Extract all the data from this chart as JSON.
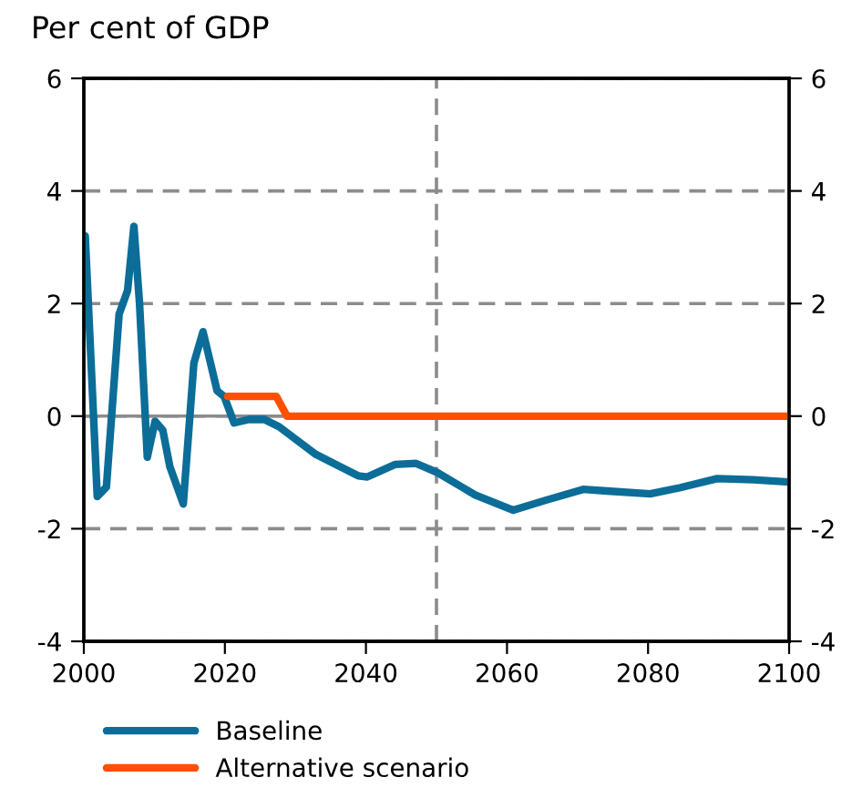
{
  "chart_data": {
    "type": "line",
    "ylabel": "Per cent of GDP",
    "series": [
      {
        "name": "Baseline",
        "color": "#0b6d98",
        "x": [
          2000.2,
          2001.9,
          2003.2,
          2005.0,
          2006.2,
          2007.1,
          2007.9,
          2009.0,
          2010.1,
          2011.2,
          2012.2,
          2014.1,
          2015.6,
          2016.9,
          2018.9,
          2019.9,
          2021.3,
          2023.4,
          2025.6,
          2027.7,
          2032.9,
          2038.9,
          2040.2,
          2044.1,
          2047.1,
          2050.1,
          2055.5,
          2060.9,
          2065.6,
          2070.8,
          2074.2,
          2080.3,
          2084.6,
          2089.8,
          2094.9,
          2100
        ],
        "values": [
          3.2,
          -1.43,
          -1.26,
          1.81,
          2.23,
          3.37,
          2.0,
          -0.73,
          -0.09,
          -0.25,
          -0.9,
          -1.56,
          0.94,
          1.5,
          0.45,
          0.35,
          -0.12,
          -0.06,
          -0.06,
          -0.19,
          -0.68,
          -1.06,
          -1.08,
          -0.86,
          -0.84,
          -1.0,
          -1.4,
          -1.67,
          -1.49,
          -1.3,
          -1.33,
          -1.38,
          -1.27,
          -1.11,
          -1.13,
          -1.17
        ]
      },
      {
        "name": "Alternative scenario",
        "color": "#ff4f00",
        "x": [
          2020.4,
          2027.3,
          2028.8,
          2100
        ],
        "values": [
          0.35,
          0.35,
          0,
          0
        ]
      }
    ],
    "xlim": [
      2000,
      2100
    ],
    "xticks": [
      2000,
      2020,
      2040,
      2060,
      2080,
      2100
    ],
    "ylim": [
      -4,
      6
    ],
    "yticks": [
      -4,
      -2,
      0,
      2,
      4,
      6
    ],
    "y2lim": [
      -4,
      6
    ],
    "y2ticks": [
      -4,
      -2,
      0,
      2,
      4,
      6
    ],
    "grid": "y",
    "ref_lines": [
      {
        "axis": "x",
        "value": 2050,
        "color": "#8c8c8c",
        "line_style": "dashed"
      },
      {
        "axis": "y",
        "value": 0,
        "color": "#8c8c8c",
        "line_style": "solid"
      }
    ],
    "legend": "bottom",
    "line_style": "solid",
    "marker": "none"
  }
}
